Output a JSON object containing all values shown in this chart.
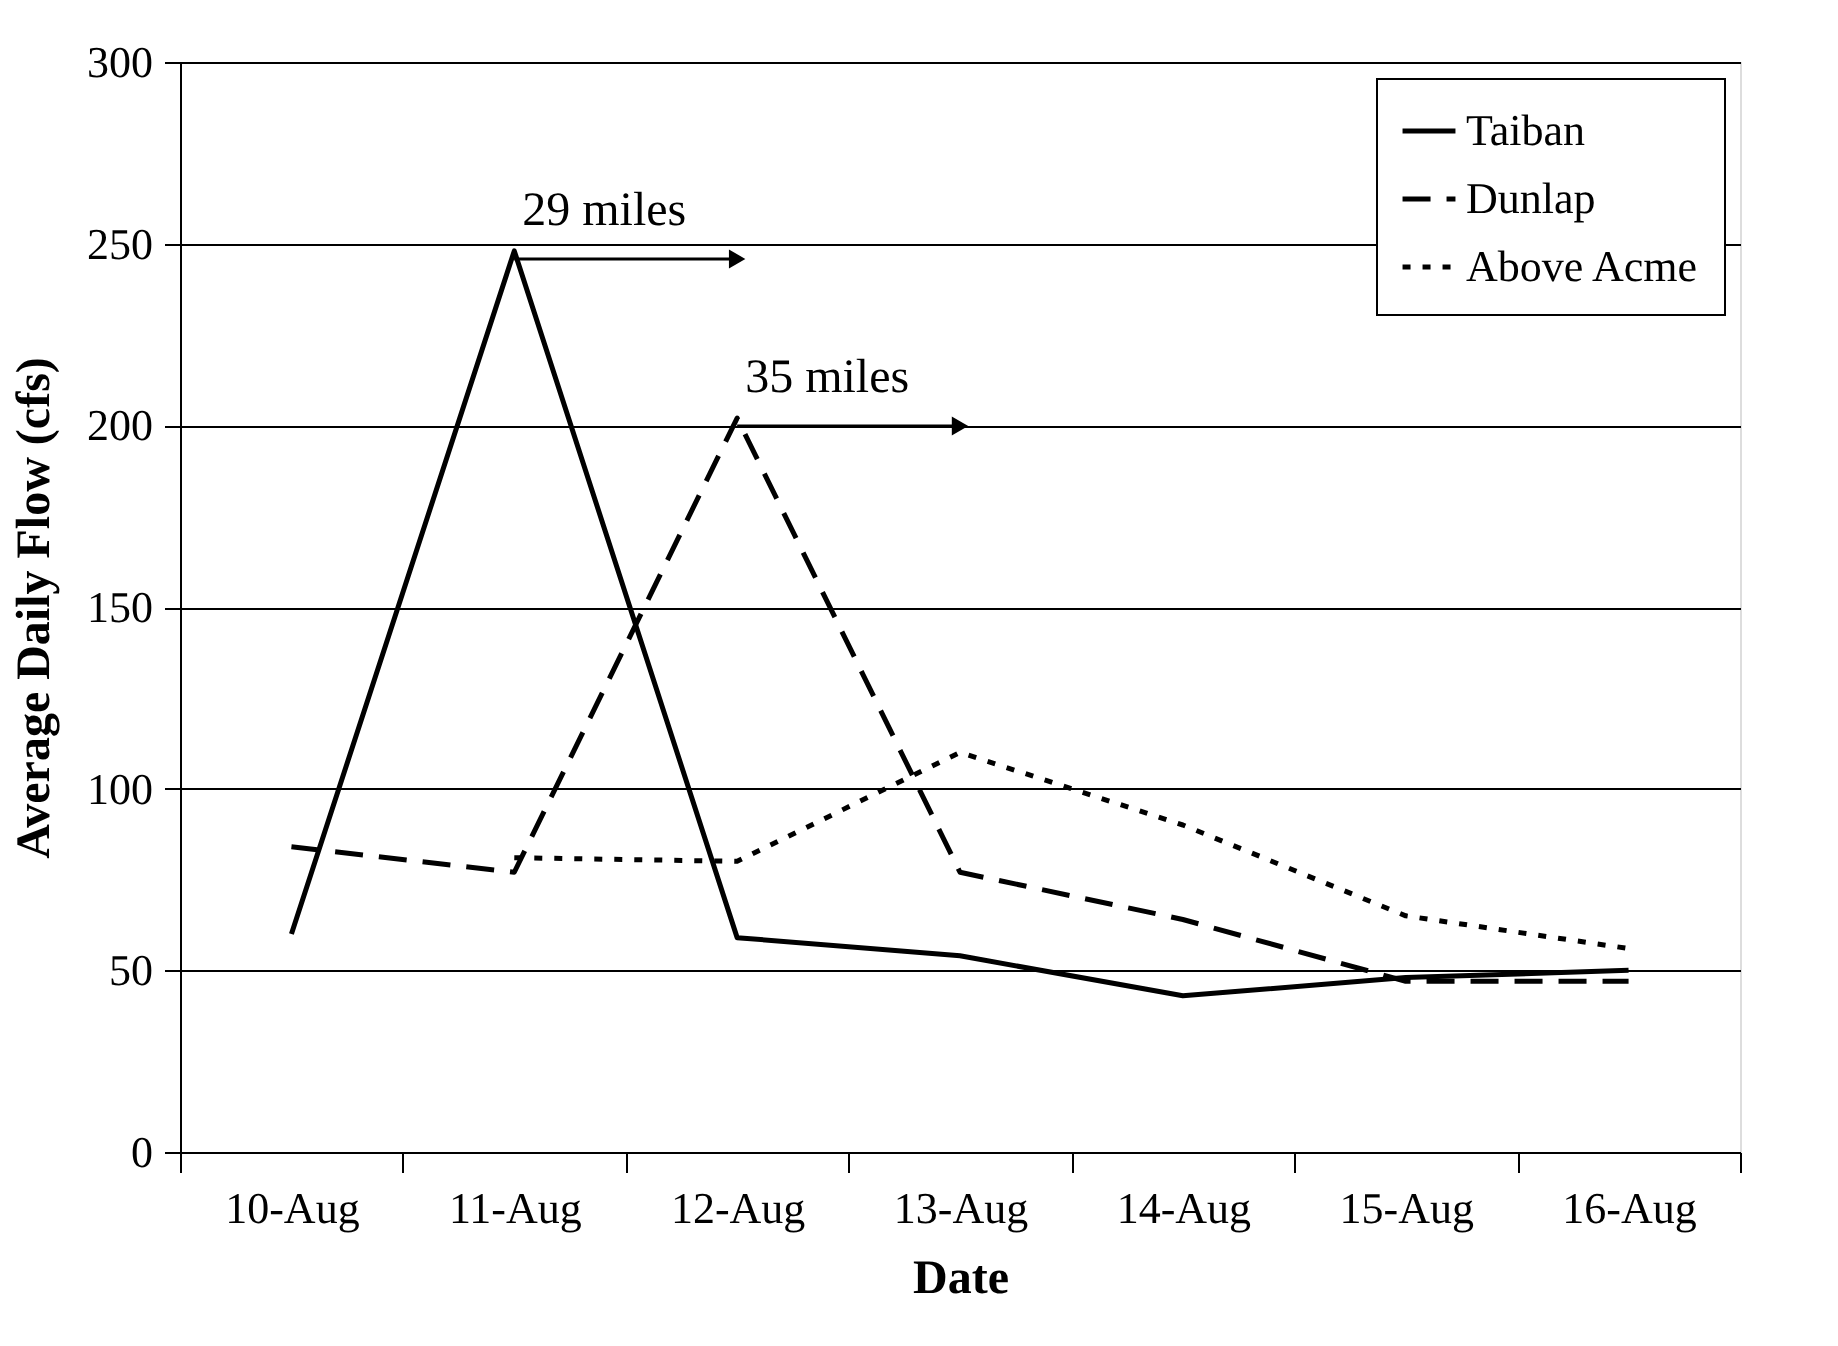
{
  "chart_data": {
    "type": "line",
    "xlabel": "Date",
    "ylabel": "Average Daily Flow (cfs)",
    "categories": [
      "10-Aug",
      "11-Aug",
      "12-Aug",
      "13-Aug",
      "14-Aug",
      "15-Aug",
      "16-Aug"
    ],
    "series": [
      {
        "name": "Taiban",
        "color": "#000000",
        "line_style": "solid",
        "values": [
          60,
          248,
          59,
          54,
          43,
          48,
          50
        ]
      },
      {
        "name": "Dunlap",
        "color": "#000000",
        "line_style": "dashed",
        "values": [
          84,
          77,
          202,
          77,
          64,
          47,
          47
        ]
      },
      {
        "name": "Above Acme",
        "color": "#000000",
        "line_style": "dotted",
        "values": [
          null,
          81,
          80,
          110,
          90,
          65,
          56
        ]
      }
    ],
    "ylim": [
      0,
      300
    ],
    "yticks": [
      0,
      50,
      100,
      150,
      200,
      250,
      300
    ],
    "grid": "y",
    "legend": "top right",
    "annotations": [
      {
        "text": "29 miles",
        "x": "11-Aug",
        "y": 248
      },
      {
        "text": "35 miles",
        "x": "12-Aug",
        "y": 202
      }
    ]
  }
}
